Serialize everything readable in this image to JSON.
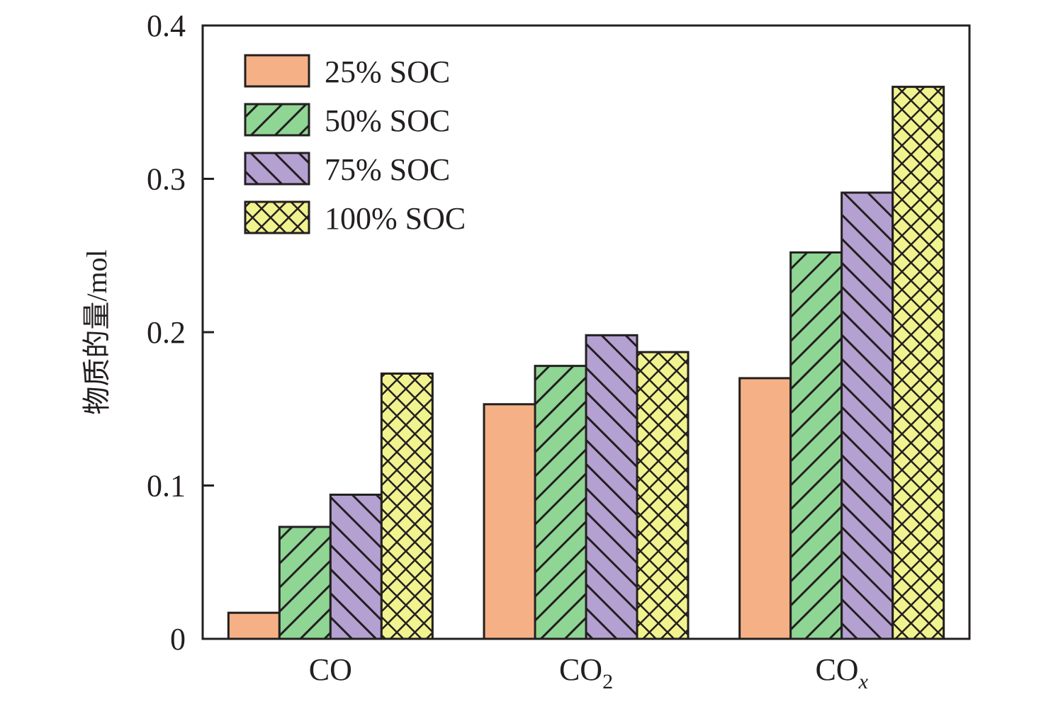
{
  "chart_data": {
    "type": "bar",
    "title": "",
    "xlabel": "",
    "ylabel": "物质的量/mol",
    "ylim": [
      0,
      0.4
    ],
    "yticks": [
      0,
      0.1,
      0.2,
      0.3,
      0.4
    ],
    "ytick_labels": [
      "0",
      "0.1",
      "0.2",
      "0.3",
      "0.4"
    ],
    "categories": [
      {
        "main": "CO",
        "sub": ""
      },
      {
        "main": "CO",
        "sub": "2"
      },
      {
        "main": "CO",
        "sub": "x"
      }
    ],
    "grid": false,
    "legend_position": "top-left",
    "series": [
      {
        "name": "25% SOC",
        "color": "#f5b185",
        "pattern": "solid",
        "values": [
          0.017,
          0.153,
          0.17
        ]
      },
      {
        "name": "50% SOC",
        "color": "#8fd694",
        "pattern": "forward-diagonal",
        "values": [
          0.073,
          0.178,
          0.252
        ]
      },
      {
        "name": "75% SOC",
        "color": "#b5a0d2",
        "pattern": "back-diagonal",
        "values": [
          0.094,
          0.198,
          0.291
        ]
      },
      {
        "name": "100% SOC",
        "color": "#f1f38e",
        "pattern": "crosshatch",
        "values": [
          0.173,
          0.187,
          0.36
        ]
      }
    ]
  }
}
